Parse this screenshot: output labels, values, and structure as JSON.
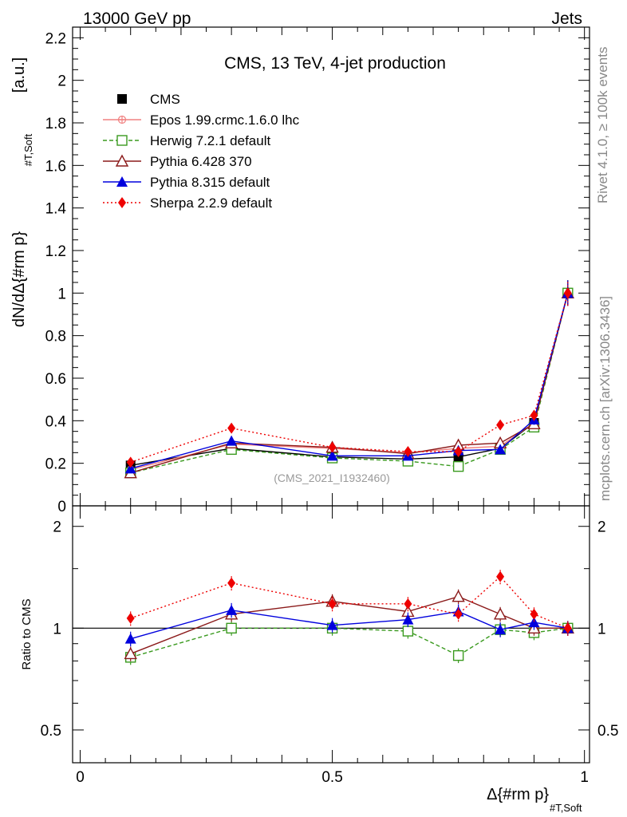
{
  "header": {
    "left": "13000 GeV pp",
    "right": "Jets"
  },
  "side_labels": {
    "rivet": "Rivet 4.1.0, ≥ 100k events",
    "mcplots": "mcplots.cern.ch [arXiv:1306.3436]"
  },
  "chart_data": [
    {
      "type": "line",
      "title": "CMS, 13 TeV, 4-jet production",
      "watermark": "(CMS_2021_I1932460)",
      "ylabel": "dN/dΔ{#rm p}",
      "ylabel_sub": "#T,Soft",
      "ylabel_unit": "[a.u.]",
      "xlim": [
        0,
        1
      ],
      "ylim": [
        0,
        2.25
      ],
      "x_ticks": [
        "0",
        "0.5",
        "1"
      ],
      "y_ticks": [
        "0",
        "0.2",
        "0.4",
        "0.6",
        "0.8",
        "1",
        "1.2",
        "1.4",
        "1.6",
        "1.8",
        "2",
        "2.2"
      ],
      "x": [
        0.1,
        0.3,
        0.5,
        0.65,
        0.75,
        0.833,
        0.9,
        0.967
      ],
      "series": [
        {
          "name": "CMS",
          "color": "#000000",
          "marker": "square-filled",
          "dash": "none",
          "values": [
            0.19,
            0.27,
            0.23,
            0.22,
            0.23,
            0.27,
            0.39,
            1.0
          ]
        },
        {
          "name": "Epos 1.99.crmc.1.6.0 lhc",
          "color": "#f08080",
          "marker": "cross-circle",
          "dash": "solid",
          "values": [
            0.17,
            0.29,
            0.27,
            0.25,
            0.27,
            0.28,
            0.39,
            1.0
          ]
        },
        {
          "name": "Herwig 7.2.1 default",
          "color": "#3a9a1f",
          "marker": "square-open",
          "dash": "dashed",
          "values": [
            0.155,
            0.265,
            0.225,
            0.21,
            0.185,
            0.265,
            0.37,
            1.0
          ]
        },
        {
          "name": "Pythia 6.428 370",
          "color": "#8b1a1a",
          "marker": "triangle-open",
          "dash": "solid",
          "values": [
            0.155,
            0.295,
            0.275,
            0.245,
            0.285,
            0.295,
            0.385,
            1.0
          ]
        },
        {
          "name": "Pythia 8.315 default",
          "color": "#0000dd",
          "marker": "triangle-filled",
          "dash": "solid",
          "values": [
            0.175,
            0.305,
            0.235,
            0.235,
            0.26,
            0.265,
            0.405,
            1.0
          ]
        },
        {
          "name": "Sherpa 2.2.9 default",
          "color": "#ee0000",
          "marker": "diamond-filled",
          "dash": "dotted",
          "values": [
            0.205,
            0.365,
            0.275,
            0.255,
            0.255,
            0.38,
            0.425,
            1.0
          ]
        }
      ]
    },
    {
      "type": "line",
      "ylabel": "Ratio to CMS",
      "xlabel": "Δ{#rm p}",
      "xlabel_sub": "#T,Soft",
      "xlim": [
        0,
        1
      ],
      "ylim": [
        0.4,
        2.3
      ],
      "scale": "log",
      "y_ticks": [
        "0.5",
        "1",
        "2"
      ],
      "x": [
        0.1,
        0.3,
        0.5,
        0.65,
        0.75,
        0.833,
        0.9,
        0.967
      ],
      "series": [
        {
          "name": "Herwig 7.2.1 default",
          "color": "#3a9a1f",
          "marker": "square-open",
          "dash": "dashed",
          "values": [
            0.82,
            1.0,
            1.0,
            0.98,
            0.83,
            0.99,
            0.97,
            1.0
          ]
        },
        {
          "name": "Pythia 6.428 370",
          "color": "#8b1a1a",
          "marker": "triangle-open",
          "dash": "solid",
          "values": [
            0.84,
            1.1,
            1.2,
            1.12,
            1.24,
            1.1,
            1.0,
            1.0
          ]
        },
        {
          "name": "Pythia 8.315 default",
          "color": "#0000dd",
          "marker": "triangle-filled",
          "dash": "solid",
          "values": [
            0.93,
            1.13,
            1.02,
            1.06,
            1.12,
            0.99,
            1.04,
            1.0
          ]
        },
        {
          "name": "Sherpa 2.2.9 default",
          "color": "#ee0000",
          "marker": "diamond-filled",
          "dash": "dotted",
          "values": [
            1.07,
            1.36,
            1.18,
            1.18,
            1.1,
            1.42,
            1.1,
            1.0
          ]
        }
      ]
    }
  ]
}
